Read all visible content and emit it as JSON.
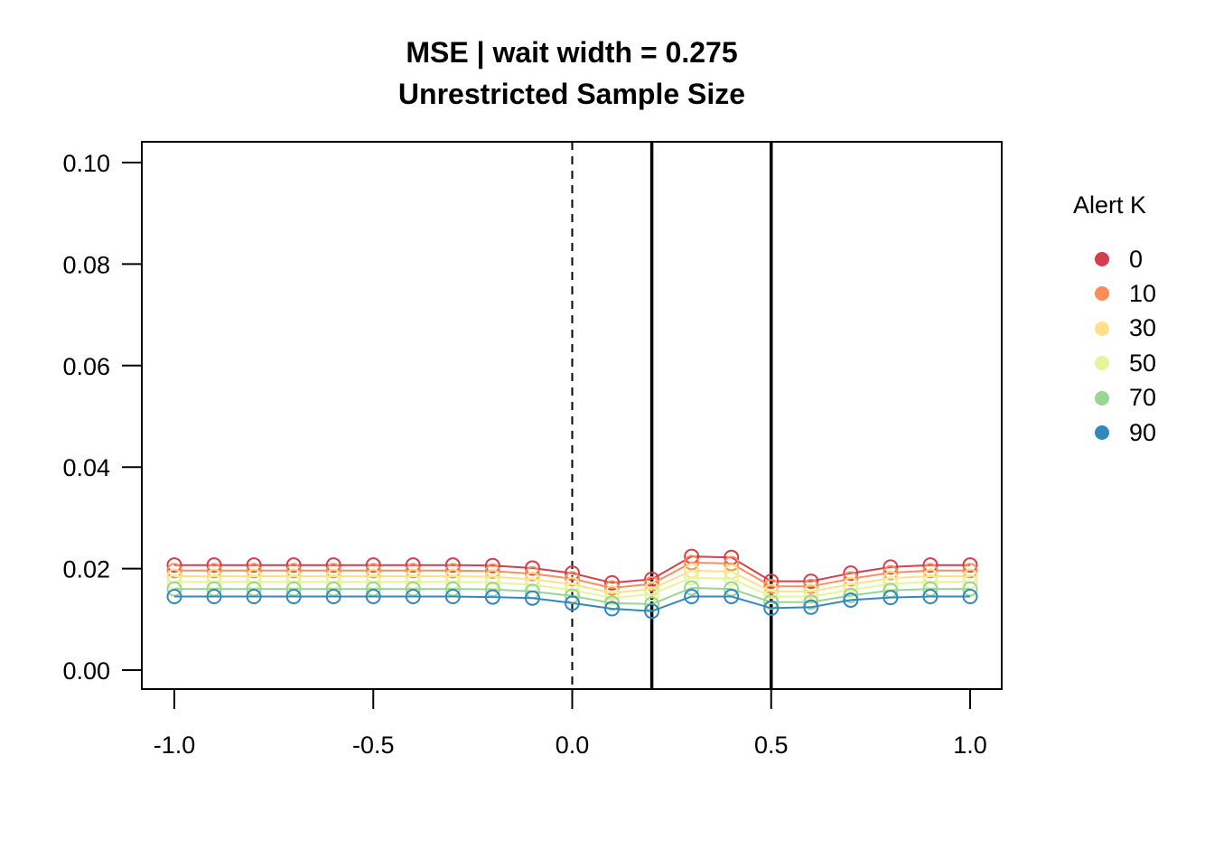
{
  "chart_data": {
    "type": "line",
    "title": "MSE | wait width = 0.275",
    "subtitle": "Unrestricted Sample Size",
    "xlabel": "",
    "ylabel": "",
    "xlim": [
      -1.0,
      1.0
    ],
    "ylim": [
      0.0,
      0.1
    ],
    "x_ticks": [
      -1.0,
      -0.5,
      0.0,
      0.5,
      1.0
    ],
    "x_tick_labels": [
      "-1.0",
      "-0.5",
      "0.0",
      "0.5",
      "1.0"
    ],
    "y_ticks": [
      0.0,
      0.02,
      0.04,
      0.06,
      0.08,
      0.1
    ],
    "y_tick_labels": [
      "0.00",
      "0.02",
      "0.04",
      "0.06",
      "0.08",
      "0.10"
    ],
    "x": [
      -1.0,
      -0.9,
      -0.8,
      -0.7,
      -0.6,
      -0.5,
      -0.4,
      -0.3,
      -0.2,
      -0.1,
      0.0,
      0.1,
      0.2,
      0.3,
      0.4,
      0.5,
      0.6,
      0.7,
      0.8,
      0.9,
      1.0
    ],
    "legend_title": "Alert K",
    "legend_position": "right",
    "series": [
      {
        "name": "0",
        "color": "#d53e4f",
        "values": [
          0.0207,
          0.0207,
          0.0207,
          0.0207,
          0.0207,
          0.0207,
          0.0207,
          0.0207,
          0.0206,
          0.0201,
          0.0191,
          0.0172,
          0.0179,
          0.0224,
          0.0222,
          0.0175,
          0.0175,
          0.0191,
          0.0203,
          0.0207,
          0.0207
        ]
      },
      {
        "name": "10",
        "color": "#fc8d59",
        "values": [
          0.0196,
          0.0196,
          0.0196,
          0.0196,
          0.0196,
          0.0196,
          0.0196,
          0.0196,
          0.0195,
          0.019,
          0.018,
          0.0162,
          0.017,
          0.0212,
          0.021,
          0.0165,
          0.0165,
          0.018,
          0.0192,
          0.0196,
          0.0196
        ]
      },
      {
        "name": "30",
        "color": "#fee08b",
        "values": [
          0.0185,
          0.0185,
          0.0185,
          0.0185,
          0.0185,
          0.0185,
          0.0185,
          0.0185,
          0.0184,
          0.0179,
          0.0169,
          0.0152,
          0.016,
          0.0196,
          0.0194,
          0.0155,
          0.0155,
          0.0169,
          0.0181,
          0.0185,
          0.0185
        ]
      },
      {
        "name": "50",
        "color": "#e6f598",
        "values": [
          0.0174,
          0.0174,
          0.0174,
          0.0174,
          0.0174,
          0.0174,
          0.0174,
          0.0174,
          0.0173,
          0.0168,
          0.0158,
          0.0142,
          0.015,
          0.0182,
          0.018,
          0.0145,
          0.0145,
          0.0158,
          0.017,
          0.0174,
          0.0174
        ]
      },
      {
        "name": "70",
        "color": "#99d594",
        "values": [
          0.016,
          0.016,
          0.016,
          0.016,
          0.016,
          0.016,
          0.016,
          0.016,
          0.0159,
          0.0155,
          0.0146,
          0.0132,
          0.013,
          0.0162,
          0.016,
          0.0134,
          0.0134,
          0.0147,
          0.0157,
          0.016,
          0.016
        ]
      },
      {
        "name": "90",
        "color": "#3288bd",
        "values": [
          0.0145,
          0.0145,
          0.0145,
          0.0145,
          0.0145,
          0.0145,
          0.0145,
          0.0145,
          0.0144,
          0.0142,
          0.0132,
          0.0121,
          0.0116,
          0.0145,
          0.0145,
          0.0122,
          0.0124,
          0.0138,
          0.0143,
          0.0145,
          0.0145
        ]
      }
    ],
    "reference_lines": [
      {
        "x": 0.0,
        "style": "dashed"
      },
      {
        "x": 0.2,
        "style": "solid"
      },
      {
        "x": 0.5,
        "style": "solid"
      }
    ]
  }
}
